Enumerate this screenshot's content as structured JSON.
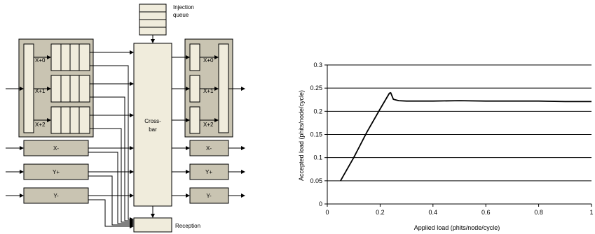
{
  "diagram": {
    "injection_queue": {
      "label_line1": "Injection",
      "label_line2": "queue"
    },
    "crossbar": {
      "label_line1": "Cross-",
      "label_line2": "bar"
    },
    "reception": {
      "label": "Reception"
    },
    "input_x_buffers": [
      "X+0",
      "X+1",
      "X+2"
    ],
    "output_x_buffers": [
      "X+0",
      "X+1",
      "X+2"
    ],
    "input_ports": [
      "X-",
      "Y+",
      "Y-"
    ],
    "output_ports": [
      "X-",
      "Y+",
      "Y-"
    ],
    "colors": {
      "fill": "#f0ecdc",
      "module": "#c9c4b2",
      "stroke": "#000000"
    }
  },
  "chart_data": {
    "type": "line",
    "xlabel": "Applied load (phits/node/cycle)",
    "ylabel": "Accepted load (phits/node/cycle)",
    "xlim": [
      0,
      1
    ],
    "ylim": [
      0,
      0.3
    ],
    "x_ticks": [
      "0",
      "0.2",
      "0.4",
      "0.6",
      "0.8",
      "1"
    ],
    "y_ticks": [
      "0",
      "0.05",
      "0.1",
      "0.15",
      "0.2",
      "0.25",
      "0.3"
    ],
    "grid": "horizontal",
    "series": [
      {
        "x": [
          0.05,
          0.1,
          0.15,
          0.2,
          0.235,
          0.24,
          0.25,
          0.27,
          0.3,
          0.4,
          0.5,
          0.6,
          0.7,
          0.8,
          0.9,
          1.0
        ],
        "y": [
          0.05,
          0.1,
          0.155,
          0.205,
          0.239,
          0.24,
          0.226,
          0.223,
          0.222,
          0.222,
          0.223,
          0.222,
          0.222,
          0.222,
          0.221,
          0.221
        ]
      }
    ]
  }
}
